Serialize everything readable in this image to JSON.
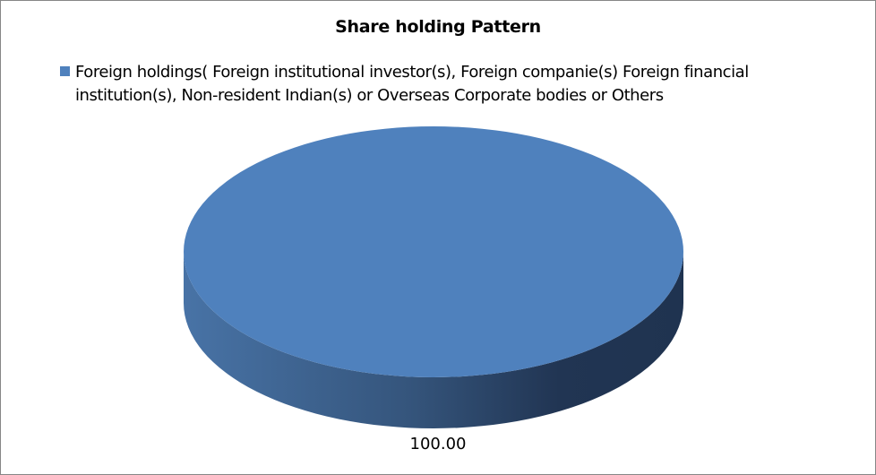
{
  "chart_data": {
    "type": "pie",
    "style": "3d",
    "title": "Share holding  Pattern",
    "legend_position": "top",
    "slices": [
      {
        "name": "Foreign holdings( Foreign institutional investor(s), Foreign companie(s) Foreign financial institution(s), Non-resident Indian(s) or Overseas Corporate bodies or Others",
        "value": 100.0,
        "label": "100.00",
        "color": "#4F81BD"
      }
    ]
  }
}
